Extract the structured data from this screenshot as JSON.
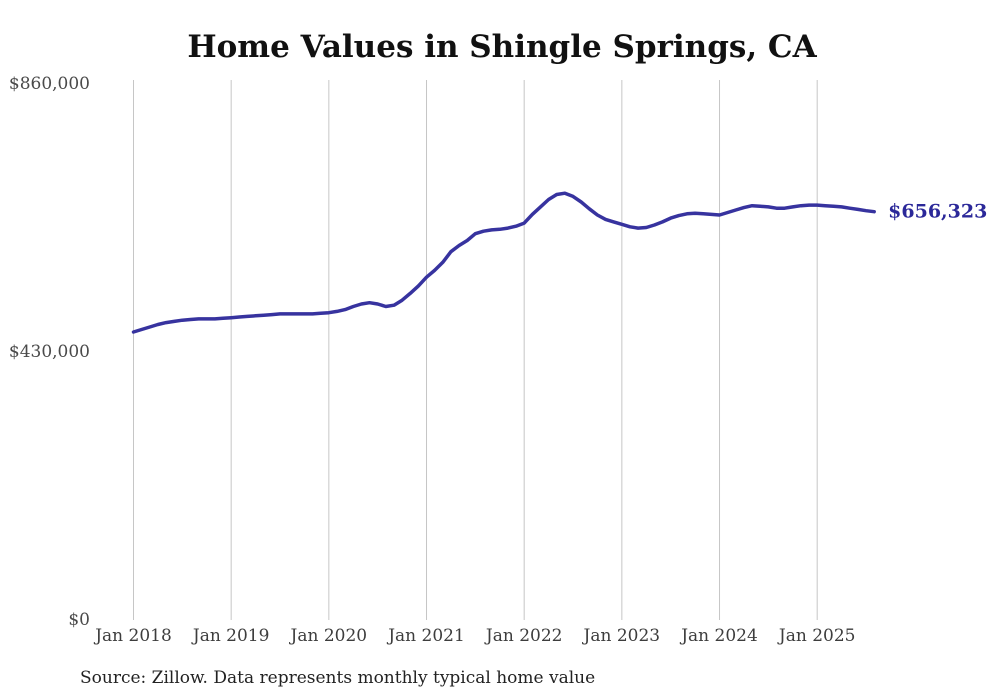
{
  "title": "Home Values in Shingle Springs, CA",
  "source_note": "Source: Zillow. Data represents monthly typical home value",
  "chart_data": {
    "type": "line",
    "title": "Home Values in Shingle Springs, CA",
    "xlabel": "",
    "ylabel": "",
    "ylim": [
      0,
      860000
    ],
    "grid": "vertical-only",
    "legend": "none",
    "line_color": "#37339f",
    "grid_color": "#c6c6c6",
    "end_label": "$656,323",
    "end_label_color": "#2b2899",
    "y_tick_labels": [
      "$0",
      "$430,000",
      "$860,000"
    ],
    "y_tick_values": [
      0,
      430000,
      860000
    ],
    "x_tick_labels": [
      "Jan 2018",
      "Jan 2019",
      "Jan 2020",
      "Jan 2021",
      "Jan 2022",
      "Jan 2023",
      "Jan 2024",
      "Jan 2025"
    ],
    "x_start": "Jan 2018",
    "x_end": "Aug 2025",
    "series": [
      {
        "name": "Monthly typical home value",
        "values": [
          463000,
          467000,
          471000,
          475000,
          478000,
          480000,
          482000,
          483000,
          484000,
          484000,
          484000,
          485000,
          486000,
          487000,
          488000,
          489000,
          490000,
          491000,
          492000,
          492000,
          492000,
          492000,
          492000,
          493000,
          494000,
          496000,
          499000,
          504000,
          508000,
          510000,
          508000,
          504000,
          506000,
          514000,
          525000,
          537000,
          551000,
          562000,
          575000,
          592000,
          602000,
          610000,
          621000,
          625000,
          627000,
          628000,
          630000,
          633000,
          638000,
          652000,
          664000,
          676000,
          684000,
          686000,
          681000,
          672000,
          661000,
          651000,
          644000,
          640000,
          636000,
          632000,
          630000,
          631000,
          635000,
          640000,
          646000,
          650000,
          653000,
          654000,
          653000,
          652000,
          651000,
          655000,
          659000,
          663000,
          666000,
          665000,
          664000,
          662000,
          662000,
          664000,
          666000,
          667000,
          667000,
          666000,
          665000,
          664000,
          662000,
          660000,
          658000,
          656323
        ]
      }
    ]
  }
}
